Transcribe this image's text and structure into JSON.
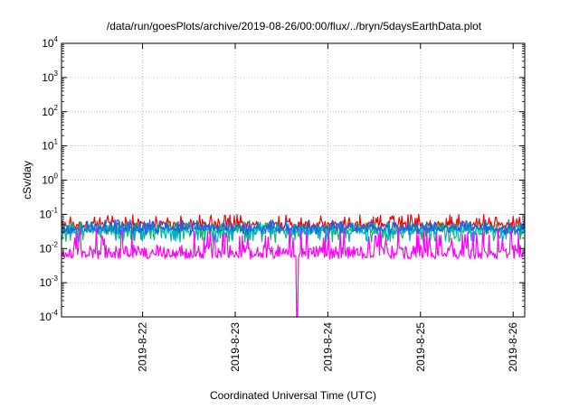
{
  "chart_data": {
    "type": "line",
    "title": "/data/run/goesPlots/archive/2019-08-26/00:00/flux/../bryn/5daysEarthData.plot",
    "xlabel": "Coordinated Universal Time (UTC)",
    "ylabel": "cSv/day",
    "yscale": "log",
    "ylim": [
      0.0001,
      10000
    ],
    "xlim": [
      "2019-08-21 03:00",
      "2019-08-26 03:00"
    ],
    "x_ticks": [
      "2019-8-22",
      "2019-8-23",
      "2019-8-24",
      "2019-8-25",
      "2019-8-26"
    ],
    "y_ticks": [
      {
        "base": "10",
        "exp": "-4",
        "value": 0.0001
      },
      {
        "base": "10",
        "exp": "-3",
        "value": 0.001
      },
      {
        "base": "10",
        "exp": "-2",
        "value": 0.01
      },
      {
        "base": "10",
        "exp": "-1",
        "value": 0.1
      },
      {
        "base": "10",
        "exp": "0",
        "value": 1
      },
      {
        "base": "10",
        "exp": "1",
        "value": 10
      },
      {
        "base": "10",
        "exp": "2",
        "value": 100
      },
      {
        "base": "10",
        "exp": "3",
        "value": 1000
      },
      {
        "base": "10",
        "exp": "4",
        "value": 10000
      }
    ],
    "grid": true,
    "legend": "none",
    "series": [
      {
        "color": "#ff0000",
        "typical": 0.05,
        "low": 0.035,
        "high": 0.1
      },
      {
        "color": "#00c060",
        "typical": 0.035,
        "low": 0.015,
        "high": 0.06
      },
      {
        "color": "#00b0c8",
        "typical": 0.035,
        "low": 0.015,
        "high": 0.06
      },
      {
        "color": "#2060e0",
        "typical": 0.04,
        "low": 0.025,
        "high": 0.07
      },
      {
        "color": "#ff00ff",
        "typical": 0.008,
        "low": 0.005,
        "high": 0.04,
        "dropout": {
          "from": "2019-08-23 15:50",
          "to": "2019-08-23 16:20",
          "value": 0.0001
        }
      }
    ]
  }
}
